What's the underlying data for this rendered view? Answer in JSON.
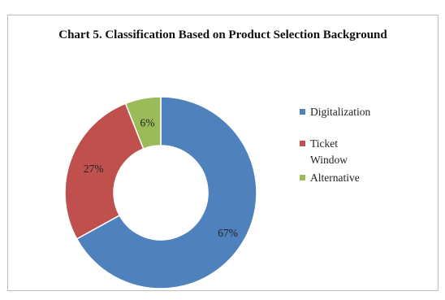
{
  "chart_data": {
    "type": "pie",
    "style": "donut",
    "title": "Chart 5. Classification Based on Product Selection Background",
    "categories": [
      "Digitalization",
      "Ticket Window",
      "Alternative"
    ],
    "values": [
      67,
      27,
      6
    ],
    "data_labels": [
      "67%",
      "27%",
      "6%"
    ],
    "colors": [
      "#4f81bd",
      "#c0504d",
      "#9bbb59"
    ],
    "legend_lines": [
      [
        "Digitalization"
      ],
      [
        "Ticket",
        "Window"
      ],
      [
        "Alternative"
      ]
    ],
    "legend_position": "right"
  }
}
